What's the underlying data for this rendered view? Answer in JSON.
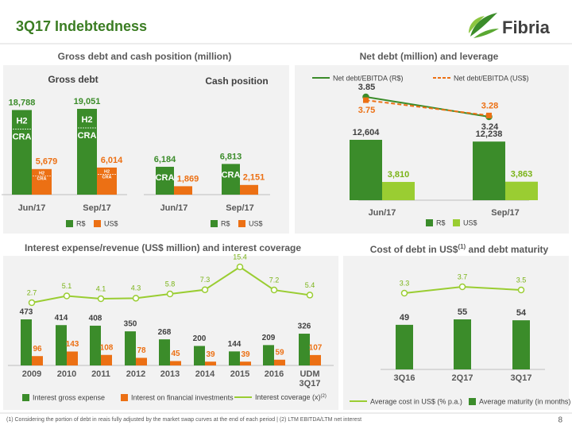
{
  "title": "3Q17 Indebtedness",
  "logo": "Fibria",
  "footnote": "(1) Considering the portion of debt in reais fully adjusted by the market swap curves at the end of each period | (2) LTM EBITDA/LTM net interest",
  "page_number": "8",
  "chart_data": [
    {
      "type": "bar",
      "title": "Gross debt and cash position (million)",
      "panels": [
        {
          "title": "Gross debt",
          "categories": [
            "Jun/17",
            "Sep/17"
          ],
          "series": [
            {
              "name": "R$",
              "color": "#3b8c2a",
              "values": [
                18788,
                19051
              ],
              "value_labels": [
                "18,788",
                "19,051"
              ],
              "inner_labels": [
                [
                  "H2",
                  "CRA"
                ],
                [
                  "H2",
                  "CRA"
                ]
              ]
            },
            {
              "name": "US$",
              "color": "#ec7014",
              "values": [
                5679,
                6014
              ],
              "value_labels": [
                "5,679",
                "6,014"
              ],
              "inner_labels": [
                [
                  "H2",
                  "CRA"
                ],
                [
                  "H2",
                  "CRA"
                ]
              ]
            }
          ]
        },
        {
          "title": "Cash position",
          "categories": [
            "Jun/17",
            "Sep/17"
          ],
          "series": [
            {
              "name": "R$",
              "color": "#3b8c2a",
              "values": [
                6184,
                6813
              ],
              "value_labels": [
                "6,184",
                "6,813"
              ],
              "inner_labels": [
                [
                  "CRA"
                ],
                [
                  "CRA"
                ]
              ]
            },
            {
              "name": "US$",
              "color": "#ec7014",
              "values": [
                1869,
                2151
              ],
              "value_labels": [
                "1,869",
                "2,151"
              ]
            }
          ]
        }
      ]
    },
    {
      "type": "bar_line",
      "title": "Net debt (million) and leverage",
      "categories": [
        "Jun/17",
        "Sep/17"
      ],
      "series": [
        {
          "name": "R$",
          "kind": "bar",
          "color": "#3b8c2a",
          "values": [
            12604,
            12238
          ],
          "value_labels": [
            "12,604",
            "12,238"
          ]
        },
        {
          "name": "US$",
          "kind": "bar",
          "color": "#9acd32",
          "values": [
            3810,
            3863
          ],
          "value_labels": [
            "3,810",
            "3,863"
          ]
        },
        {
          "name": "Net debt/EBITDA (R$)",
          "kind": "line",
          "axis": "y2",
          "color": "#3b8c2a",
          "values": [
            3.85,
            3.24
          ]
        },
        {
          "name": "Net debt/EBITDA (US$)",
          "kind": "line",
          "axis": "y2",
          "color": "#ec7014",
          "dash": true,
          "values": [
            3.75,
            3.28
          ]
        }
      ]
    },
    {
      "type": "bar_line",
      "title": "Interest expense/revenue (US$ million) and interest coverage",
      "categories": [
        "2009",
        "2010",
        "2011",
        "2012",
        "2013",
        "2014",
        "2015",
        "2016",
        "UDM 3Q17"
      ],
      "series": [
        {
          "name": "Interest gross expense",
          "kind": "bar",
          "color": "#3b8c2a",
          "values": [
            473,
            414,
            408,
            350,
            268,
            200,
            144,
            209,
            326
          ]
        },
        {
          "name": "Interest on financial investments",
          "kind": "bar",
          "color": "#ec7014",
          "values": [
            96,
            143,
            108,
            78,
            45,
            39,
            39,
            59,
            107
          ]
        },
        {
          "name": "Interest coverage (x)",
          "note_ref": "(2)",
          "kind": "line",
          "axis": "y2",
          "color": "#9acd32",
          "values": [
            2.7,
            5.1,
            4.1,
            4.3,
            5.8,
            7.3,
            15.4,
            7.2,
            5.4
          ]
        }
      ]
    },
    {
      "type": "bar_line",
      "title": "Cost of debt in US$",
      "title_note_ref": "(1)",
      "title_suffix": " and debt maturity",
      "categories": [
        "3Q16",
        "2Q17",
        "3Q17"
      ],
      "series": [
        {
          "name": "Average cost in US$ (% p.a.)",
          "kind": "line",
          "axis": "y2",
          "color": "#9acd32",
          "values": [
            3.3,
            3.7,
            3.5
          ]
        },
        {
          "name": "Average maturity (in months)",
          "kind": "bar",
          "color": "#3b8c2a",
          "values": [
            49,
            55,
            54
          ]
        }
      ]
    }
  ]
}
